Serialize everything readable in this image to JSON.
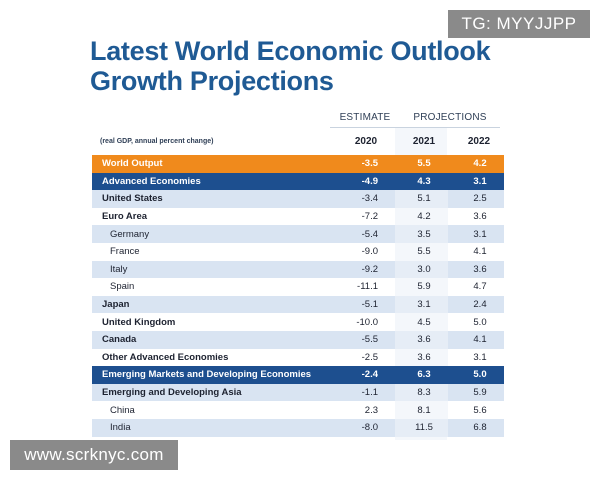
{
  "title_line1": "Latest World Economic Outlook",
  "title_line2": "Growth Projections",
  "header": {
    "estimate": "ESTIMATE",
    "projections": "PROJECTIONS",
    "note": "(real GDP, annual percent change)",
    "years": [
      "2020",
      "2021",
      "2022"
    ]
  },
  "rows": [
    {
      "label": "World Output",
      "v2020": "-3.5",
      "v2021": "5.5",
      "v2022": "4.2"
    },
    {
      "label": "Advanced Economies",
      "v2020": "-4.9",
      "v2021": "4.3",
      "v2022": "3.1"
    },
    {
      "label": "United States",
      "v2020": "-3.4",
      "v2021": "5.1",
      "v2022": "2.5"
    },
    {
      "label": "Euro Area",
      "v2020": "-7.2",
      "v2021": "4.2",
      "v2022": "3.6"
    },
    {
      "label": "Germany",
      "v2020": "-5.4",
      "v2021": "3.5",
      "v2022": "3.1"
    },
    {
      "label": "France",
      "v2020": "-9.0",
      "v2021": "5.5",
      "v2022": "4.1"
    },
    {
      "label": "Italy",
      "v2020": "-9.2",
      "v2021": "3.0",
      "v2022": "3.6"
    },
    {
      "label": "Spain",
      "v2020": "-11.1",
      "v2021": "5.9",
      "v2022": "4.7"
    },
    {
      "label": "Japan",
      "v2020": "-5.1",
      "v2021": "3.1",
      "v2022": "2.4"
    },
    {
      "label": "United Kingdom",
      "v2020": "-10.0",
      "v2021": "4.5",
      "v2022": "5.0"
    },
    {
      "label": "Canada",
      "v2020": "-5.5",
      "v2021": "3.6",
      "v2022": "4.1"
    },
    {
      "label": "Other Advanced Economies",
      "v2020": "-2.5",
      "v2021": "3.6",
      "v2022": "3.1"
    },
    {
      "label": "Emerging Markets and Developing Economies",
      "v2020": "-2.4",
      "v2021": "6.3",
      "v2022": "5.0"
    },
    {
      "label": "Emerging and Developing Asia",
      "v2020": "-1.1",
      "v2021": "8.3",
      "v2022": "5.9"
    },
    {
      "label": "China",
      "v2020": "2.3",
      "v2021": "8.1",
      "v2022": "5.6"
    },
    {
      "label": "India",
      "v2020": "-8.0",
      "v2021": "11.5",
      "v2022": "6.8"
    }
  ],
  "watermark_top": "TG: MYYJJPP",
  "watermark_bottom": "www.scrknyc.com",
  "colors": {
    "title": "#1f5a94",
    "world_output_bg": "#f08a1c",
    "group_bg": "#1d4f8f",
    "row_light": "#d9e4f2"
  }
}
